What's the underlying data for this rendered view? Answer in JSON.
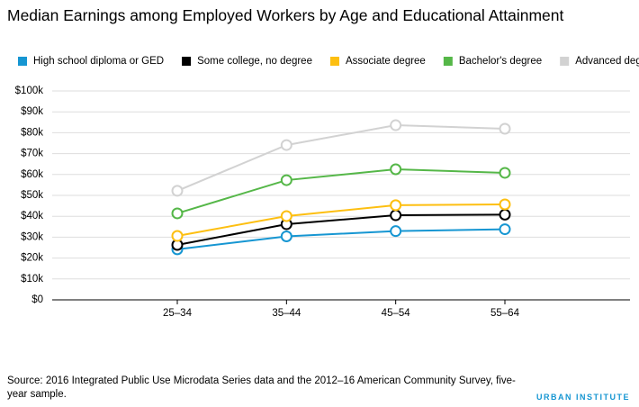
{
  "chart_data": {
    "type": "line",
    "title": "Median Earnings among Employed Workers by Age and Educational Attainment",
    "categories": [
      "25–34",
      "35–44",
      "45–54",
      "55–64"
    ],
    "series": [
      {
        "name": "High school diploma or GED",
        "color": "#1696d2",
        "values": [
          24200,
          30400,
          32900,
          33800
        ]
      },
      {
        "name": "Some college, no degree",
        "color": "#000000",
        "values": [
          26300,
          36200,
          40500,
          40800
        ]
      },
      {
        "name": "Associate degree",
        "color": "#fdbf11",
        "values": [
          30600,
          40100,
          45300,
          45700
        ]
      },
      {
        "name": "Bachelor's degree",
        "color": "#55b748",
        "values": [
          41400,
          57300,
          62500,
          60800
        ]
      },
      {
        "name": "Advanced degree",
        "color": "#d2d2d2",
        "values": [
          52200,
          74100,
          83600,
          81900
        ]
      }
    ],
    "ylim": [
      0,
      100000
    ],
    "yticks": [
      {
        "value": 0,
        "label": "$0"
      },
      {
        "value": 10000,
        "label": "$10k"
      },
      {
        "value": 20000,
        "label": "$20k"
      },
      {
        "value": 30000,
        "label": "$30k"
      },
      {
        "value": 40000,
        "label": "$40k"
      },
      {
        "value": 50000,
        "label": "$50k"
      },
      {
        "value": 60000,
        "label": "$60k"
      },
      {
        "value": 70000,
        "label": "$70k"
      },
      {
        "value": 80000,
        "label": "$80k"
      },
      {
        "value": 90000,
        "label": "$90k"
      },
      {
        "value": 100000,
        "label": "$100k"
      }
    ],
    "grid": true,
    "legend": "top",
    "source": "Source: 2016 Integrated Public Use Microdata Series data and the 2012–16 American Community Survey, five-year sample.",
    "branding": "URBAN INSTITUTE"
  }
}
